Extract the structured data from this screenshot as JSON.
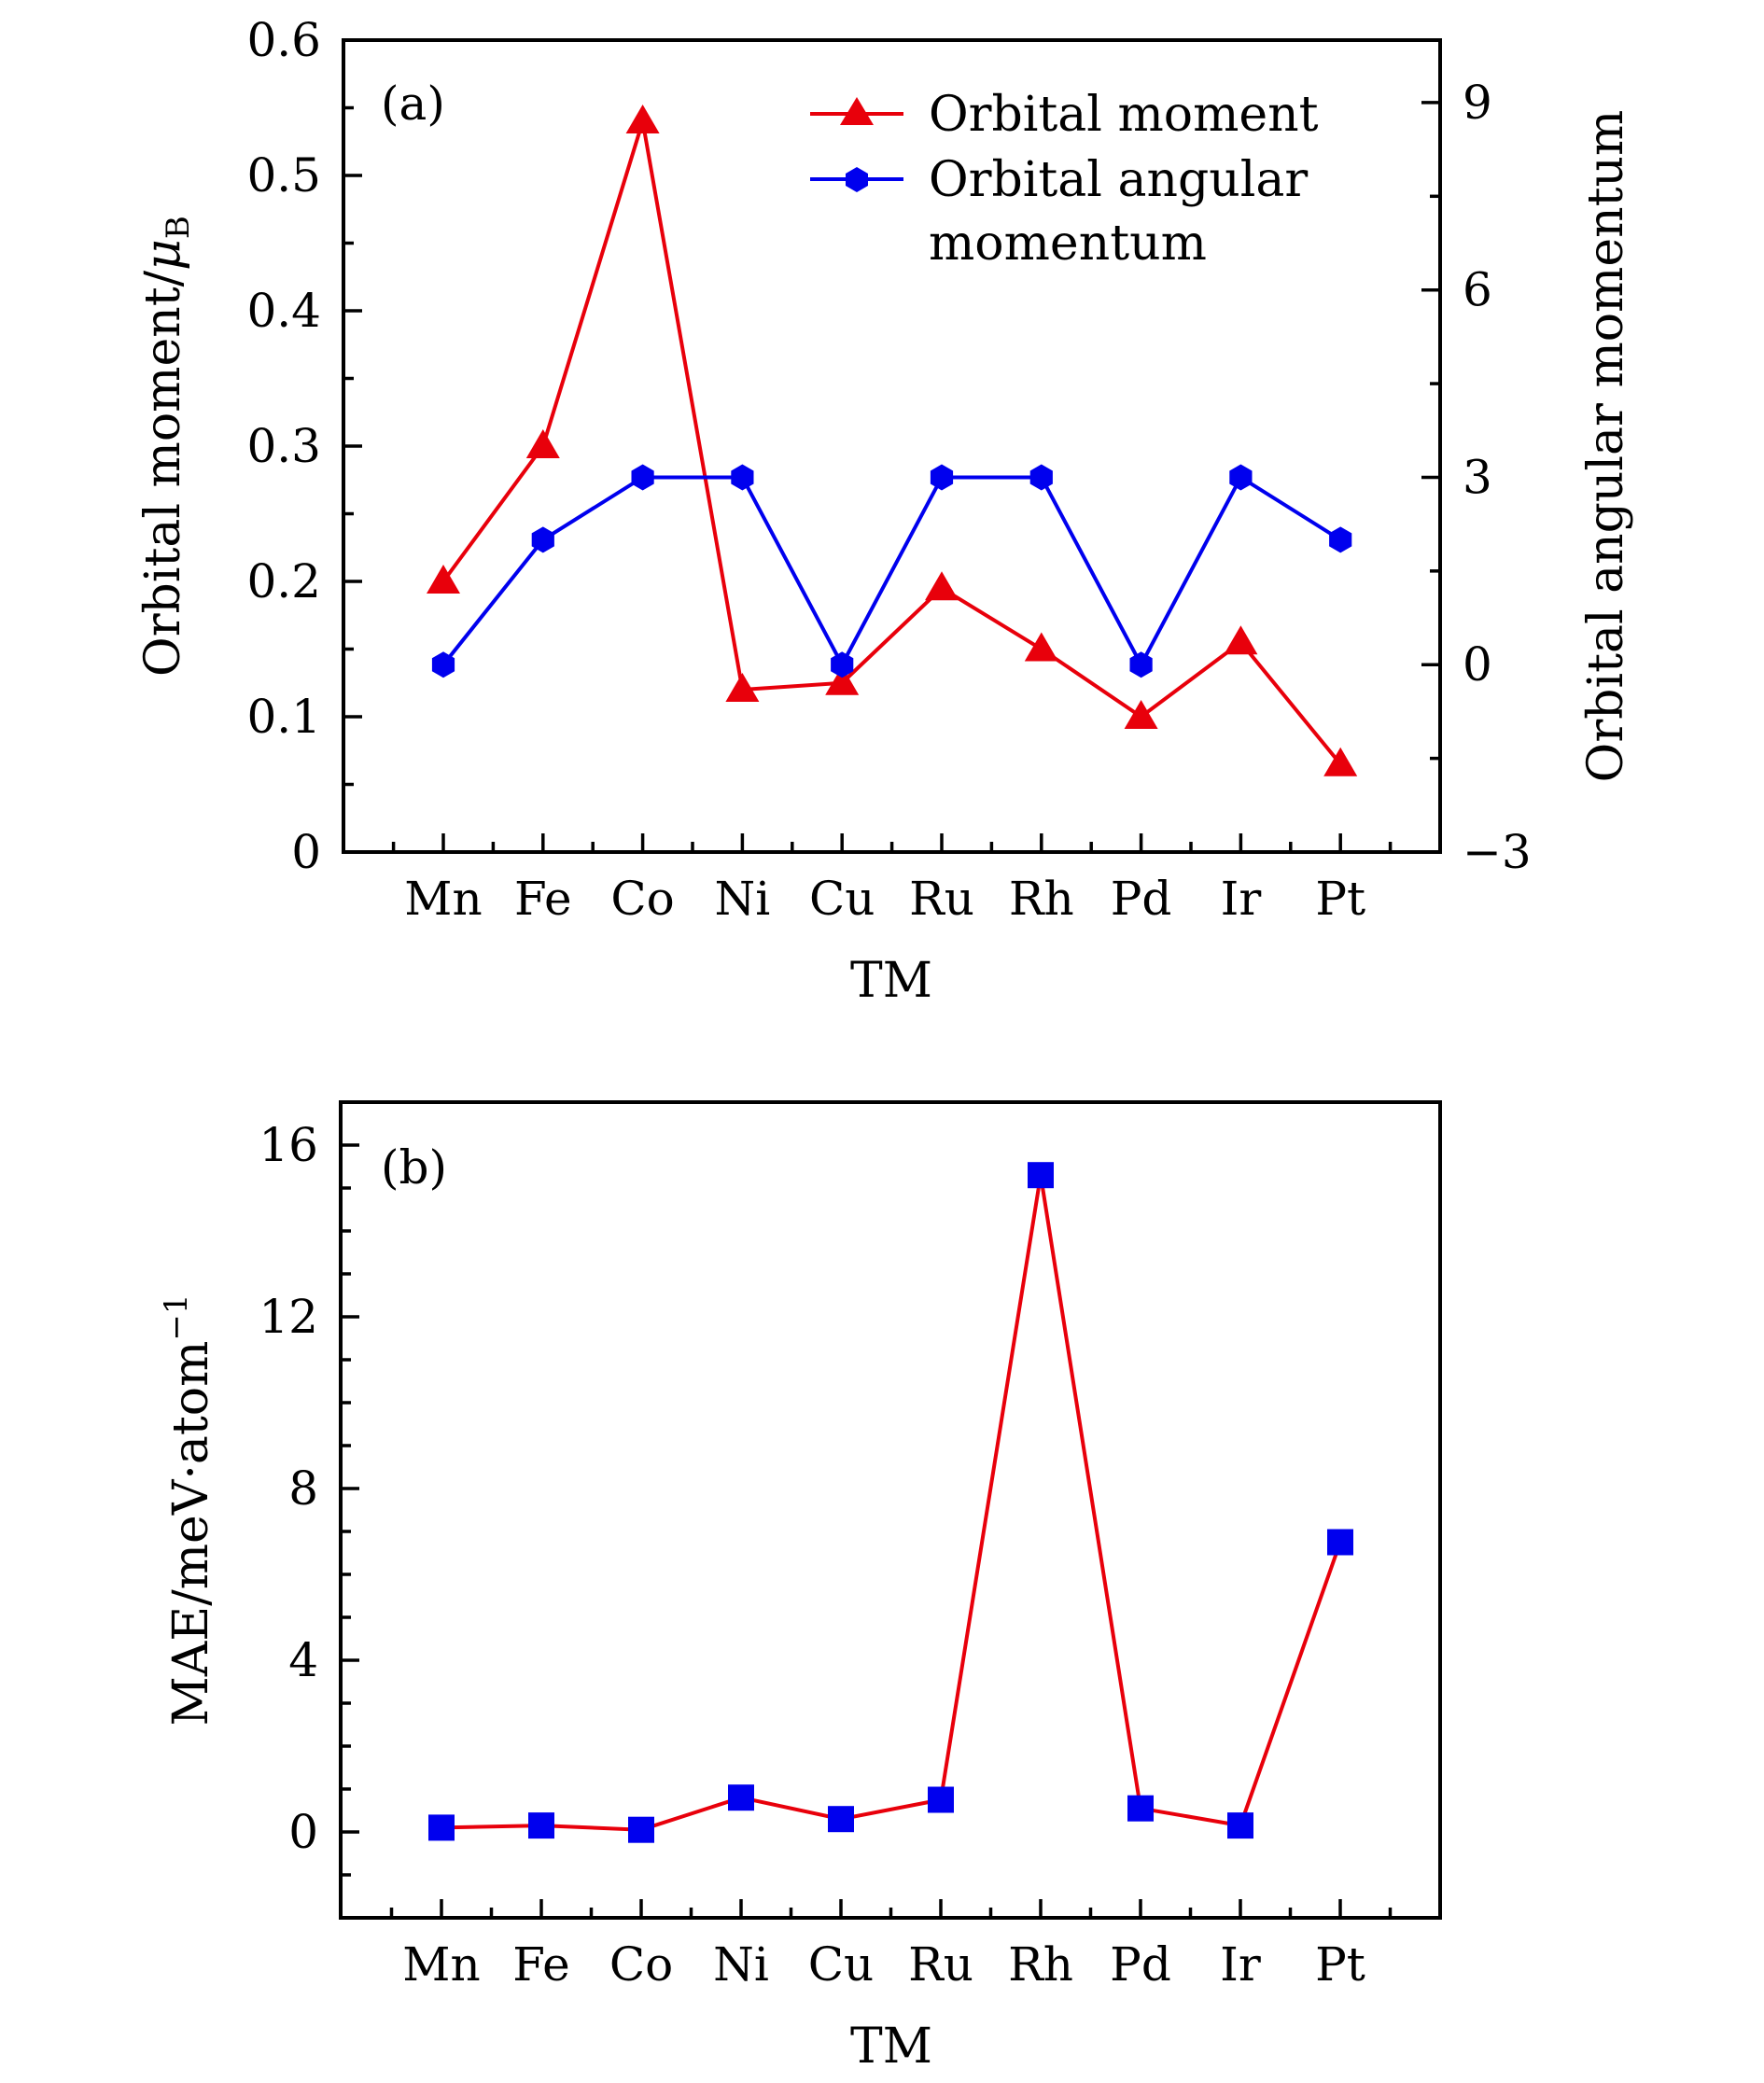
{
  "chart_data": [
    {
      "type": "line",
      "panel_label": "(a)",
      "categories": [
        "Mn",
        "Fe",
        "Co",
        "Ni",
        "Cu",
        "Ru",
        "Rh",
        "Pd",
        "Ir",
        "Pt"
      ],
      "xlabel": "TM",
      "ylabel": "Orbital moment/",
      "ylabel_symbol": "μ",
      "ylabel_subscript": "B",
      "y2label": "Orbital angular momentum",
      "ylim": [
        0,
        0.6
      ],
      "y2lim": [
        -3,
        10
      ],
      "yticks": [
        "0",
        "0.1",
        "0.2",
        "0.3",
        "0.4",
        "0.5",
        "0.6"
      ],
      "y2ticks": [
        "−3",
        "0",
        "3",
        "6",
        "9"
      ],
      "legend_position": "top-right",
      "series": [
        {
          "name": "Orbital moment",
          "axis": "left",
          "marker": "triangle",
          "color": "#e8000b",
          "values": [
            0.2,
            0.3,
            0.54,
            0.12,
            0.125,
            0.195,
            0.15,
            0.1,
            0.155,
            0.065
          ]
        },
        {
          "name_lines": [
            "Orbital angular",
            "momentum"
          ],
          "axis": "right",
          "marker": "hexagon",
          "color": "#0000ee",
          "values": [
            0,
            2,
            3,
            3,
            0,
            3,
            3,
            0,
            3,
            2
          ]
        }
      ]
    },
    {
      "type": "line",
      "panel_label": "(b)",
      "categories": [
        "Mn",
        "Fe",
        "Co",
        "Ni",
        "Cu",
        "Ru",
        "Rh",
        "Pd",
        "Ir",
        "Pt"
      ],
      "xlabel": "TM",
      "ylabel": "MAE/meV·atom",
      "ylabel_superscript": "−1",
      "ylim": [
        -2,
        17
      ],
      "yticks": [
        "0",
        "4",
        "8",
        "12",
        "16"
      ],
      "series": [
        {
          "marker": "square",
          "marker_color": "#0000ee",
          "line_color": "#e8000b",
          "values": [
            0.1,
            0.15,
            0.05,
            0.8,
            0.3,
            0.75,
            15.3,
            0.55,
            0.15,
            6.75
          ]
        }
      ]
    }
  ]
}
